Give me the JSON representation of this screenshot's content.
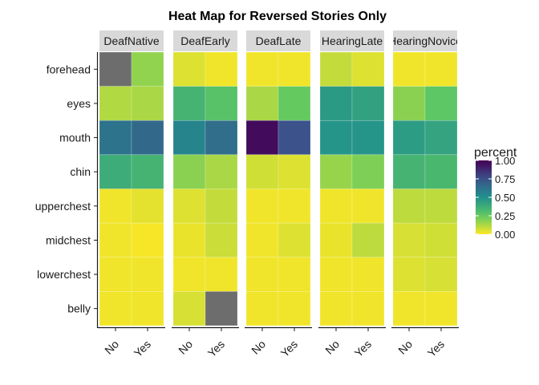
{
  "chart_data": {
    "type": "heatmap",
    "title": "Heat Map for Reversed Stories Only",
    "facets": [
      "DeafNative",
      "DeafEarly",
      "DeafLate",
      "HearingLate",
      "HearingNovice"
    ],
    "x_categories": [
      "No",
      "Yes"
    ],
    "y_categories": [
      "forehead",
      "eyes",
      "mouth",
      "chin",
      "upperchest",
      "midchest",
      "lowerchest",
      "belly"
    ],
    "xlabel": "",
    "ylabel": "",
    "legend": {
      "title": "percent",
      "ticks": [
        "0.00",
        "0.25",
        "0.50",
        "0.75",
        "1.00"
      ],
      "range": [
        0,
        1
      ],
      "placement": "right",
      "colormap": "viridis (reversed)"
    },
    "na_color": "#6d6d6d",
    "grid": false,
    "values": {
      "DeafNative": {
        "No": [
          null,
          0.12,
          0.62,
          0.38,
          0.02,
          0.02,
          0.02,
          0.02
        ],
        "Yes": [
          0.17,
          0.13,
          0.66,
          0.35,
          0.04,
          0.01,
          0.02,
          0.02
        ]
      },
      "DeafEarly": {
        "No": [
          0.05,
          0.35,
          0.55,
          0.18,
          0.05,
          0.03,
          0.02,
          0.06
        ],
        "Yes": [
          0.02,
          0.28,
          0.64,
          0.13,
          0.09,
          0.08,
          0.02,
          null
        ]
      },
      "DeafLate": {
        "No": [
          0.02,
          0.13,
          0.97,
          0.07,
          0.02,
          0.02,
          0.02,
          0.02
        ],
        "Yes": [
          0.02,
          0.24,
          0.75,
          0.05,
          0.02,
          0.05,
          0.02,
          0.02
        ]
      },
      "HearingLate": {
        "No": [
          0.09,
          0.46,
          0.48,
          0.16,
          0.02,
          0.03,
          0.02,
          0.02
        ],
        "Yes": [
          0.05,
          0.43,
          0.48,
          0.2,
          0.02,
          0.1,
          0.02,
          0.02
        ]
      },
      "HearingNovice": {
        "No": [
          0.02,
          0.18,
          0.45,
          0.35,
          0.1,
          0.06,
          0.05,
          0.02
        ],
        "Yes": [
          0.02,
          0.26,
          0.42,
          0.33,
          0.1,
          0.07,
          0.06,
          0.02
        ]
      }
    }
  }
}
